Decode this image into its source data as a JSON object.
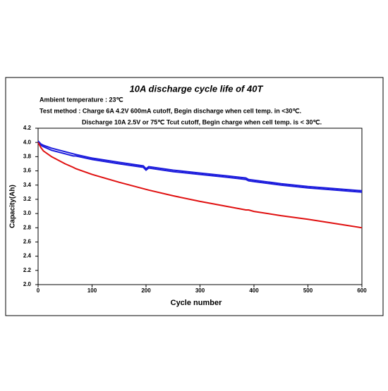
{
  "chart_data": {
    "type": "line",
    "title": "10A discharge cycle life of 40T",
    "annotations": [
      "Ambient temperature : 23℃",
      "Test method : Charge 6A 4.2V 600mA cutoff, Begin discharge when cell temp. in <30℃.",
      "Discharge 10A 2.5V or 75℃ Tcut cutoff,  Begin charge when cell temp. is < 30℃."
    ],
    "x_label": "Cycle number",
    "y_label": "Capacity(Ah)",
    "x": [
      0,
      5,
      10,
      25,
      50,
      65,
      70,
      100,
      150,
      195,
      200,
      205,
      250,
      300,
      350,
      385,
      390,
      400,
      450,
      500,
      550,
      600
    ],
    "series": [
      {
        "color": "#1a1adc",
        "values": [
          4.02,
          3.98,
          3.96,
          3.92,
          3.87,
          3.84,
          3.83,
          3.78,
          3.72,
          3.67,
          3.63,
          3.66,
          3.61,
          3.57,
          3.53,
          3.5,
          3.48,
          3.47,
          3.42,
          3.38,
          3.35,
          3.32
        ]
      },
      {
        "color": "#1a1adc",
        "values": [
          4.0,
          3.96,
          3.94,
          3.89,
          3.84,
          3.81,
          3.81,
          3.76,
          3.7,
          3.65,
          3.61,
          3.64,
          3.59,
          3.55,
          3.51,
          3.48,
          3.46,
          3.45,
          3.4,
          3.36,
          3.33,
          3.3
        ]
      },
      {
        "color": "#e01010",
        "values": [
          4.0,
          3.93,
          3.88,
          3.8,
          3.7,
          3.65,
          3.63,
          3.55,
          3.44,
          3.35,
          3.34,
          3.33,
          3.25,
          3.17,
          3.1,
          3.05,
          3.05,
          3.03,
          2.97,
          2.92,
          2.86,
          2.8
        ]
      }
    ],
    "xlim": [
      0,
      600
    ],
    "xticks": [
      0,
      100,
      200,
      300,
      400,
      500,
      600
    ],
    "ylim": [
      2.0,
      4.2
    ],
    "yticks": [
      {
        "value": 2.0,
        "label": "2.0"
      },
      2.2,
      2.4,
      2.6,
      2.8,
      {
        "value": 3.0,
        "label": "3.0"
      },
      3.2,
      3.4,
      3.6,
      3.8,
      {
        "value": 4.0,
        "label": "4.0"
      },
      4.2
    ],
    "grid": false
  }
}
